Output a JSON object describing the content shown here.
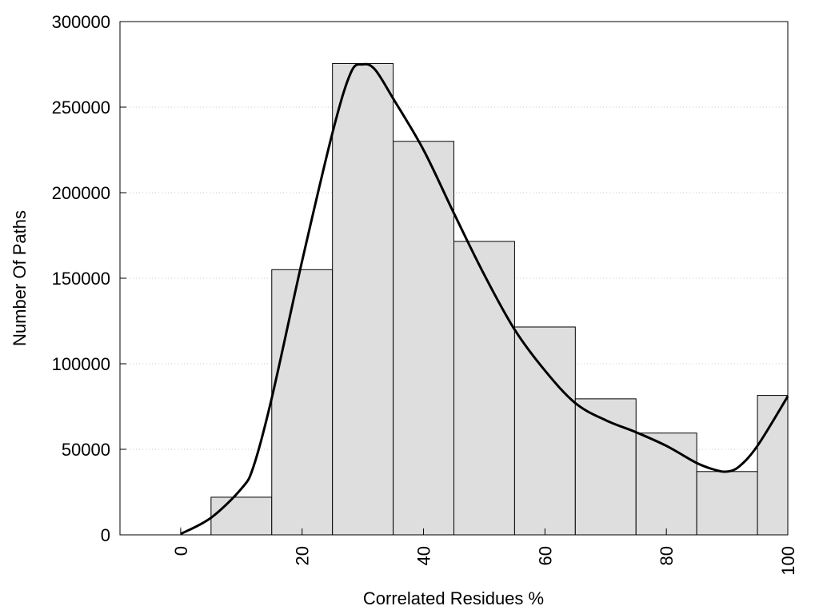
{
  "chart_data": {
    "type": "bar",
    "title": "",
    "xlabel": "Correlated Residues %",
    "ylabel": "Number Of Paths",
    "xlim": [
      -10,
      100
    ],
    "ylim": [
      0,
      300000
    ],
    "x_ticks": [
      0,
      20,
      40,
      60,
      80,
      100
    ],
    "y_ticks": [
      0,
      50000,
      100000,
      150000,
      200000,
      250000,
      300000
    ],
    "grid": "horizontal-dotted",
    "bin_width": 10,
    "bins": [
      {
        "center": 0,
        "value": 0
      },
      {
        "center": 10,
        "value": 22000
      },
      {
        "center": 20,
        "value": 155000
      },
      {
        "center": 30,
        "value": 275500
      },
      {
        "center": 40,
        "value": 230000
      },
      {
        "center": 50,
        "value": 171500
      },
      {
        "center": 60,
        "value": 121500
      },
      {
        "center": 70,
        "value": 79500
      },
      {
        "center": 80,
        "value": 59500
      },
      {
        "center": 90,
        "value": 37000
      },
      {
        "center": 100,
        "value": 81500
      }
    ],
    "curve": {
      "type": "line",
      "x": [
        0,
        5,
        10,
        12,
        15,
        20,
        25,
        28,
        30,
        32,
        35,
        40,
        45,
        50,
        55,
        60,
        65,
        70,
        75,
        80,
        85,
        88,
        90,
        92,
        95,
        100
      ],
      "y": [
        500,
        10000,
        27000,
        40000,
        80000,
        160000,
        235000,
        270000,
        275000,
        272000,
        255000,
        225000,
        188000,
        152000,
        120000,
        96000,
        77000,
        67000,
        60000,
        52000,
        42000,
        38000,
        37000,
        40000,
        52000,
        81000
      ]
    },
    "bar_fill": "#dedede",
    "bar_stroke": "#000000",
    "curve_color": "#000000"
  }
}
